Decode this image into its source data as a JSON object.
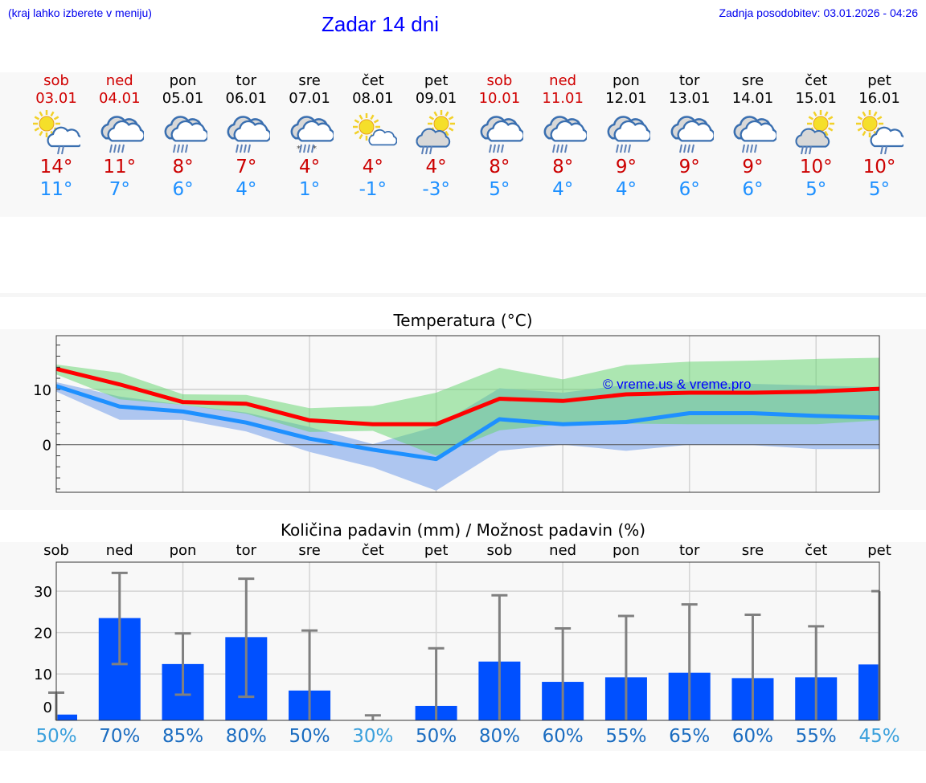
{
  "header": {
    "hint": "(kraj lahko izberete v meniju)",
    "title": "Zadar 14 dni",
    "updated": "Zadnja posodobitev: 03.01.2026 - 04:26"
  },
  "days": [
    {
      "name": "sob",
      "date": "03.01",
      "weekend": true,
      "icon": "sun-cloud-light-rain",
      "max": "14°",
      "min": "11°"
    },
    {
      "name": "ned",
      "date": "04.01",
      "weekend": true,
      "icon": "heavy-rain",
      "max": "11°",
      "min": "7°"
    },
    {
      "name": "pon",
      "date": "05.01",
      "weekend": false,
      "icon": "heavy-rain",
      "max": "8°",
      "min": "6°"
    },
    {
      "name": "tor",
      "date": "06.01",
      "weekend": false,
      "icon": "heavy-rain",
      "max": "7°",
      "min": "4°"
    },
    {
      "name": "sre",
      "date": "07.01",
      "weekend": false,
      "icon": "sleet",
      "max": "4°",
      "min": "1°"
    },
    {
      "name": "čet",
      "date": "08.01",
      "weekend": false,
      "icon": "sun-cloud",
      "max": "4°",
      "min": "-1°"
    },
    {
      "name": "pet",
      "date": "09.01",
      "weekend": false,
      "icon": "sun-behind-rain-cloud",
      "max": "4°",
      "min": "-3°"
    },
    {
      "name": "sob",
      "date": "10.01",
      "weekend": true,
      "icon": "heavy-rain",
      "max": "8°",
      "min": "5°"
    },
    {
      "name": "ned",
      "date": "11.01",
      "weekend": true,
      "icon": "heavy-rain",
      "max": "8°",
      "min": "4°"
    },
    {
      "name": "pon",
      "date": "12.01",
      "weekend": false,
      "icon": "heavy-rain",
      "max": "9°",
      "min": "4°"
    },
    {
      "name": "tor",
      "date": "13.01",
      "weekend": false,
      "icon": "heavy-rain",
      "max": "9°",
      "min": "6°"
    },
    {
      "name": "sre",
      "date": "14.01",
      "weekend": false,
      "icon": "heavy-rain",
      "max": "9°",
      "min": "6°"
    },
    {
      "name": "čet",
      "date": "15.01",
      "weekend": false,
      "icon": "sun-behind-rain-cloud",
      "max": "10°",
      "min": "5°"
    },
    {
      "name": "pet",
      "date": "16.01",
      "weekend": false,
      "icon": "sun-cloud-light-rain",
      "max": "10°",
      "min": "5°"
    }
  ],
  "colors": {
    "max": "#ff0000",
    "min": "#1e90ff",
    "max_band": "#abe8ad",
    "min_band": "#aec6f0",
    "overlap": "#7ec8a8",
    "bar": "#0050ff",
    "whisker": "#808080",
    "pct_dark": "#1a6cc0",
    "pct_light": "#3aa0dc"
  },
  "chart_data": [
    {
      "type": "line",
      "title": "Temperatura (°C)",
      "watermark": "© vreme.us & vreme.pro",
      "x": [
        0,
        1,
        2,
        3,
        4,
        5,
        6,
        7,
        8,
        9,
        10,
        11,
        12,
        13
      ],
      "ylim": [
        -8.6,
        19.7
      ],
      "yticks": [
        0,
        10
      ],
      "ytick_labels": [
        "0",
        "10"
      ],
      "series": [
        {
          "name": "max",
          "values": [
            13.7,
            10.9,
            7.7,
            7.4,
            4.4,
            3.7,
            3.7,
            8.3,
            7.9,
            9.1,
            9.4,
            9.4,
            9.6,
            10.1
          ]
        },
        {
          "name": "min",
          "values": [
            10.6,
            6.9,
            6.0,
            4.0,
            1.1,
            -0.9,
            -2.6,
            4.6,
            3.7,
            4.1,
            5.7,
            5.7,
            5.2,
            4.9
          ]
        },
        {
          "name": "max_range_upper",
          "values": [
            14.5,
            13.0,
            9.1,
            9.0,
            6.6,
            7.0,
            9.4,
            13.9,
            11.8,
            14.4,
            15.0,
            15.2,
            15.5,
            15.7
          ]
        },
        {
          "name": "max_range_lower",
          "values": [
            12.7,
            8.2,
            7.2,
            5.6,
            2.3,
            2.5,
            -2.0,
            2.6,
            3.7,
            3.8,
            3.7,
            3.7,
            3.7,
            4.4
          ]
        },
        {
          "name": "min_range_upper",
          "values": [
            11.3,
            8.7,
            7.2,
            5.8,
            3.2,
            0.1,
            3.3,
            10.2,
            9.4,
            10.8,
            11.3,
            11.0,
            10.7,
            10.4
          ]
        },
        {
          "name": "min_range_lower",
          "values": [
            9.6,
            4.5,
            4.5,
            2.4,
            -1.3,
            -4.1,
            -8.3,
            -1.1,
            0.0,
            -1.1,
            0.0,
            -0.1,
            -0.8,
            -0.8
          ]
        }
      ]
    },
    {
      "type": "bar",
      "title": "Količina padavin (mm) / Možnost padavin (%)",
      "categories": [
        "sob",
        "ned",
        "pon",
        "tor",
        "sre",
        "čet",
        "pet",
        "sob",
        "ned",
        "pon",
        "tor",
        "sre",
        "čet",
        "pet"
      ],
      "ylim": [
        -1.2,
        37
      ],
      "yticks": [
        0,
        10,
        20,
        30
      ],
      "ytick_labels": [
        "0",
        "10",
        "20",
        "30"
      ],
      "values": [
        0.2,
        23.5,
        12.4,
        18.9,
        6.0,
        0.0,
        2.3,
        13.0,
        8.1,
        9.2,
        10.3,
        9.0,
        9.2,
        12.3
      ],
      "error_high": [
        5.5,
        34.4,
        19.8,
        33.0,
        20.5,
        0.0,
        16.2,
        29.0,
        21.0,
        24.0,
        26.8,
        24.3,
        21.5,
        30.0
      ],
      "error_low": [
        0,
        12.4,
        5.0,
        4.5,
        0,
        0,
        0,
        0,
        0,
        0,
        0,
        0,
        0,
        0
      ],
      "probability": [
        {
          "label": "50%",
          "tone": "light"
        },
        {
          "label": "70%",
          "tone": "dark"
        },
        {
          "label": "85%",
          "tone": "dark"
        },
        {
          "label": "80%",
          "tone": "dark"
        },
        {
          "label": "50%",
          "tone": "dark"
        },
        {
          "label": "30%",
          "tone": "light"
        },
        {
          "label": "50%",
          "tone": "dark"
        },
        {
          "label": "80%",
          "tone": "dark"
        },
        {
          "label": "60%",
          "tone": "dark"
        },
        {
          "label": "55%",
          "tone": "dark"
        },
        {
          "label": "65%",
          "tone": "dark"
        },
        {
          "label": "60%",
          "tone": "dark"
        },
        {
          "label": "55%",
          "tone": "dark"
        },
        {
          "label": "45%",
          "tone": "light"
        }
      ]
    }
  ]
}
